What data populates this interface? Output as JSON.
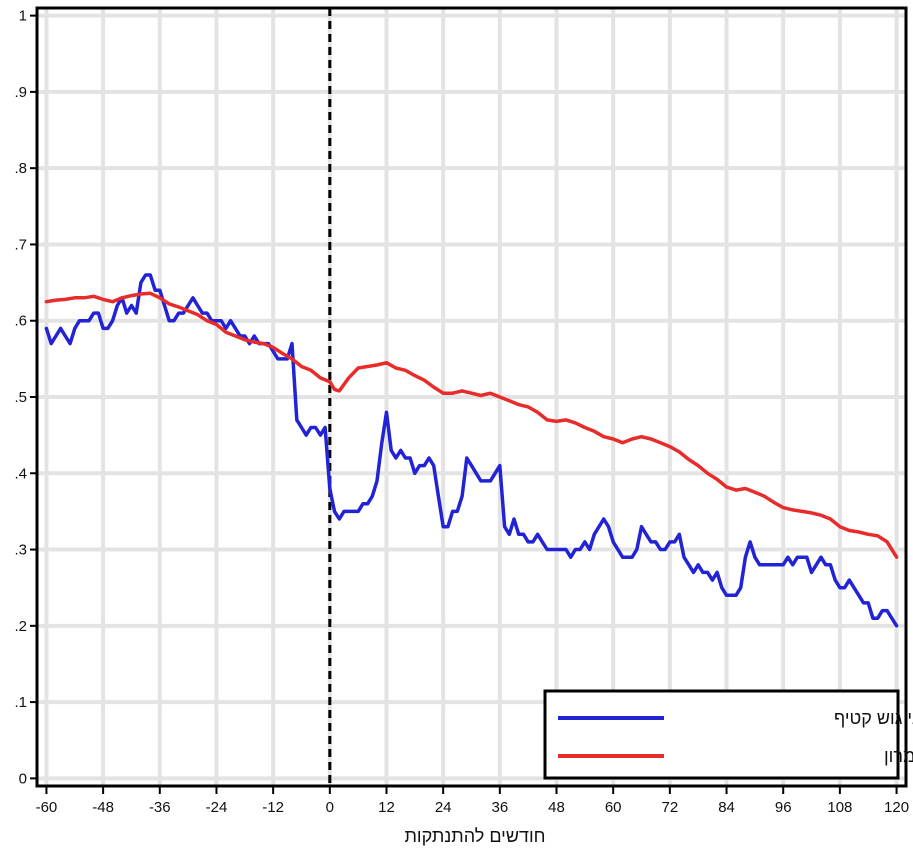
{
  "chart_data": {
    "type": "line",
    "title": "",
    "xlabel": "חודשים להתנתקות",
    "ylabel": "",
    "xlim": [
      -62,
      122
    ],
    "ylim": [
      -0.01,
      1.01
    ],
    "xticks": [
      -60,
      -48,
      -36,
      -24,
      -12,
      0,
      12,
      24,
      36,
      48,
      60,
      72,
      84,
      96,
      108,
      120
    ],
    "xtick_labels": [
      "-60",
      "-48",
      "-36",
      "-24",
      "-12",
      "0",
      "12",
      "24",
      "36",
      "48",
      "60",
      "72",
      "84",
      "96",
      "108",
      "120"
    ],
    "yticks": [
      0,
      0.1,
      0.2,
      0.3,
      0.4,
      0.5,
      0.6,
      0.7,
      0.8,
      0.9,
      1
    ],
    "ytick_labels": [
      "0",
      ".1",
      ".2",
      ".3",
      ".4",
      ".5",
      ".6",
      ".7",
      ".8",
      ".9",
      "1"
    ],
    "grid": true,
    "vline": {
      "x": 0,
      "style": "dashed",
      "color": "#000000"
    },
    "legend_position": "bottom-right",
    "series": [
      {
        "name": "מפוני גוש קטיף",
        "color": "#2323d6",
        "points": [
          [
            -60,
            0.59
          ],
          [
            -59,
            0.57
          ],
          [
            -58,
            0.58
          ],
          [
            -57,
            0.59
          ],
          [
            -56,
            0.58
          ],
          [
            -55,
            0.57
          ],
          [
            -54,
            0.59
          ],
          [
            -53,
            0.6
          ],
          [
            -52,
            0.6
          ],
          [
            -51,
            0.6
          ],
          [
            -50,
            0.61
          ],
          [
            -49,
            0.61
          ],
          [
            -48,
            0.59
          ],
          [
            -47,
            0.59
          ],
          [
            -46,
            0.6
          ],
          [
            -45,
            0.62
          ],
          [
            -44,
            0.63
          ],
          [
            -43,
            0.61
          ],
          [
            -42,
            0.62
          ],
          [
            -41,
            0.61
          ],
          [
            -40,
            0.65
          ],
          [
            -39,
            0.66
          ],
          [
            -38,
            0.66
          ],
          [
            -37,
            0.64
          ],
          [
            -36,
            0.64
          ],
          [
            -35,
            0.62
          ],
          [
            -34,
            0.6
          ],
          [
            -33,
            0.6
          ],
          [
            -32,
            0.61
          ],
          [
            -31,
            0.61
          ],
          [
            -30,
            0.62
          ],
          [
            -29,
            0.63
          ],
          [
            -28,
            0.62
          ],
          [
            -27,
            0.61
          ],
          [
            -26,
            0.61
          ],
          [
            -25,
            0.6
          ],
          [
            -24,
            0.6
          ],
          [
            -23,
            0.6
          ],
          [
            -22,
            0.59
          ],
          [
            -21,
            0.6
          ],
          [
            -20,
            0.59
          ],
          [
            -19,
            0.58
          ],
          [
            -18,
            0.58
          ],
          [
            -17,
            0.57
          ],
          [
            -16,
            0.58
          ],
          [
            -15,
            0.57
          ],
          [
            -14,
            0.57
          ],
          [
            -13,
            0.57
          ],
          [
            -12,
            0.56
          ],
          [
            -11,
            0.55
          ],
          [
            -10,
            0.55
          ],
          [
            -9,
            0.55
          ],
          [
            -8,
            0.57
          ],
          [
            -7,
            0.47
          ],
          [
            -6,
            0.46
          ],
          [
            -5,
            0.45
          ],
          [
            -4,
            0.46
          ],
          [
            -3,
            0.46
          ],
          [
            -2,
            0.45
          ],
          [
            -1,
            0.46
          ],
          [
            0,
            0.38
          ],
          [
            1,
            0.35
          ],
          [
            2,
            0.34
          ],
          [
            3,
            0.35
          ],
          [
            4,
            0.35
          ],
          [
            5,
            0.35
          ],
          [
            6,
            0.35
          ],
          [
            7,
            0.36
          ],
          [
            8,
            0.36
          ],
          [
            9,
            0.37
          ],
          [
            10,
            0.39
          ],
          [
            11,
            0.44
          ],
          [
            12,
            0.48
          ],
          [
            13,
            0.43
          ],
          [
            14,
            0.42
          ],
          [
            15,
            0.43
          ],
          [
            16,
            0.42
          ],
          [
            17,
            0.42
          ],
          [
            18,
            0.4
          ],
          [
            19,
            0.41
          ],
          [
            20,
            0.41
          ],
          [
            21,
            0.42
          ],
          [
            22,
            0.41
          ],
          [
            23,
            0.37
          ],
          [
            24,
            0.33
          ],
          [
            25,
            0.33
          ],
          [
            26,
            0.35
          ],
          [
            27,
            0.35
          ],
          [
            28,
            0.37
          ],
          [
            29,
            0.42
          ],
          [
            30,
            0.41
          ],
          [
            31,
            0.4
          ],
          [
            32,
            0.39
          ],
          [
            33,
            0.39
          ],
          [
            34,
            0.39
          ],
          [
            35,
            0.4
          ],
          [
            36,
            0.41
          ],
          [
            37,
            0.33
          ],
          [
            38,
            0.32
          ],
          [
            39,
            0.34
          ],
          [
            40,
            0.32
          ],
          [
            41,
            0.32
          ],
          [
            42,
            0.31
          ],
          [
            43,
            0.31
          ],
          [
            44,
            0.32
          ],
          [
            45,
            0.31
          ],
          [
            46,
            0.3
          ],
          [
            47,
            0.3
          ],
          [
            48,
            0.3
          ],
          [
            49,
            0.3
          ],
          [
            50,
            0.3
          ],
          [
            51,
            0.29
          ],
          [
            52,
            0.3
          ],
          [
            53,
            0.3
          ],
          [
            54,
            0.31
          ],
          [
            55,
            0.3
          ],
          [
            56,
            0.32
          ],
          [
            57,
            0.33
          ],
          [
            58,
            0.34
          ],
          [
            59,
            0.33
          ],
          [
            60,
            0.31
          ],
          [
            61,
            0.3
          ],
          [
            62,
            0.29
          ],
          [
            63,
            0.29
          ],
          [
            64,
            0.29
          ],
          [
            65,
            0.3
          ],
          [
            66,
            0.33
          ],
          [
            67,
            0.32
          ],
          [
            68,
            0.31
          ],
          [
            69,
            0.31
          ],
          [
            70,
            0.3
          ],
          [
            71,
            0.3
          ],
          [
            72,
            0.31
          ],
          [
            73,
            0.31
          ],
          [
            74,
            0.32
          ],
          [
            75,
            0.29
          ],
          [
            76,
            0.28
          ],
          [
            77,
            0.27
          ],
          [
            78,
            0.28
          ],
          [
            79,
            0.27
          ],
          [
            80,
            0.27
          ],
          [
            81,
            0.26
          ],
          [
            82,
            0.27
          ],
          [
            83,
            0.25
          ],
          [
            84,
            0.24
          ],
          [
            85,
            0.24
          ],
          [
            86,
            0.24
          ],
          [
            87,
            0.25
          ],
          [
            88,
            0.29
          ],
          [
            89,
            0.31
          ],
          [
            90,
            0.29
          ],
          [
            91,
            0.28
          ],
          [
            92,
            0.28
          ],
          [
            93,
            0.28
          ],
          [
            94,
            0.28
          ],
          [
            95,
            0.28
          ],
          [
            96,
            0.28
          ],
          [
            97,
            0.29
          ],
          [
            98,
            0.28
          ],
          [
            99,
            0.29
          ],
          [
            100,
            0.29
          ],
          [
            101,
            0.29
          ],
          [
            102,
            0.27
          ],
          [
            103,
            0.28
          ],
          [
            104,
            0.29
          ],
          [
            105,
            0.28
          ],
          [
            106,
            0.28
          ],
          [
            107,
            0.26
          ],
          [
            108,
            0.25
          ],
          [
            109,
            0.25
          ],
          [
            110,
            0.26
          ],
          [
            111,
            0.25
          ],
          [
            112,
            0.24
          ],
          [
            113,
            0.23
          ],
          [
            114,
            0.23
          ],
          [
            115,
            0.21
          ],
          [
            116,
            0.21
          ],
          [
            117,
            0.22
          ],
          [
            118,
            0.22
          ],
          [
            119,
            0.21
          ],
          [
            120,
            0.2
          ]
        ]
      },
      {
        "name": "תושבי יהודה ושומרון",
        "color": "#e82b2b",
        "points": [
          [
            -60,
            0.625
          ],
          [
            -58,
            0.627
          ],
          [
            -56,
            0.628
          ],
          [
            -54,
            0.63
          ],
          [
            -52,
            0.63
          ],
          [
            -50,
            0.632
          ],
          [
            -48,
            0.628
          ],
          [
            -46,
            0.625
          ],
          [
            -44,
            0.63
          ],
          [
            -42,
            0.633
          ],
          [
            -40,
            0.635
          ],
          [
            -38,
            0.636
          ],
          [
            -36,
            0.63
          ],
          [
            -34,
            0.622
          ],
          [
            -32,
            0.618
          ],
          [
            -30,
            0.613
          ],
          [
            -28,
            0.608
          ],
          [
            -26,
            0.6
          ],
          [
            -24,
            0.595
          ],
          [
            -22,
            0.585
          ],
          [
            -20,
            0.58
          ],
          [
            -18,
            0.575
          ],
          [
            -16,
            0.572
          ],
          [
            -14,
            0.57
          ],
          [
            -12,
            0.565
          ],
          [
            -10,
            0.557
          ],
          [
            -8,
            0.55
          ],
          [
            -6,
            0.54
          ],
          [
            -4,
            0.535
          ],
          [
            -2,
            0.525
          ],
          [
            0,
            0.52
          ],
          [
            1,
            0.51
          ],
          [
            2,
            0.508
          ],
          [
            4,
            0.525
          ],
          [
            6,
            0.538
          ],
          [
            8,
            0.54
          ],
          [
            10,
            0.542
          ],
          [
            12,
            0.545
          ],
          [
            14,
            0.538
          ],
          [
            16,
            0.535
          ],
          [
            18,
            0.528
          ],
          [
            20,
            0.522
          ],
          [
            22,
            0.513
          ],
          [
            24,
            0.505
          ],
          [
            26,
            0.505
          ],
          [
            28,
            0.508
          ],
          [
            30,
            0.505
          ],
          [
            32,
            0.502
          ],
          [
            34,
            0.505
          ],
          [
            36,
            0.5
          ],
          [
            38,
            0.495
          ],
          [
            40,
            0.49
          ],
          [
            42,
            0.487
          ],
          [
            44,
            0.48
          ],
          [
            46,
            0.47
          ],
          [
            48,
            0.468
          ],
          [
            50,
            0.47
          ],
          [
            52,
            0.466
          ],
          [
            54,
            0.46
          ],
          [
            56,
            0.455
          ],
          [
            58,
            0.448
          ],
          [
            60,
            0.445
          ],
          [
            62,
            0.44
          ],
          [
            64,
            0.445
          ],
          [
            66,
            0.448
          ],
          [
            68,
            0.445
          ],
          [
            70,
            0.44
          ],
          [
            72,
            0.435
          ],
          [
            74,
            0.428
          ],
          [
            76,
            0.418
          ],
          [
            78,
            0.41
          ],
          [
            80,
            0.4
          ],
          [
            82,
            0.392
          ],
          [
            84,
            0.382
          ],
          [
            86,
            0.378
          ],
          [
            88,
            0.38
          ],
          [
            90,
            0.375
          ],
          [
            92,
            0.37
          ],
          [
            94,
            0.362
          ],
          [
            96,
            0.355
          ],
          [
            98,
            0.352
          ],
          [
            100,
            0.35
          ],
          [
            102,
            0.348
          ],
          [
            104,
            0.345
          ],
          [
            106,
            0.34
          ],
          [
            108,
            0.33
          ],
          [
            110,
            0.325
          ],
          [
            112,
            0.323
          ],
          [
            114,
            0.32
          ],
          [
            116,
            0.318
          ],
          [
            118,
            0.31
          ],
          [
            120,
            0.29
          ]
        ]
      }
    ]
  }
}
